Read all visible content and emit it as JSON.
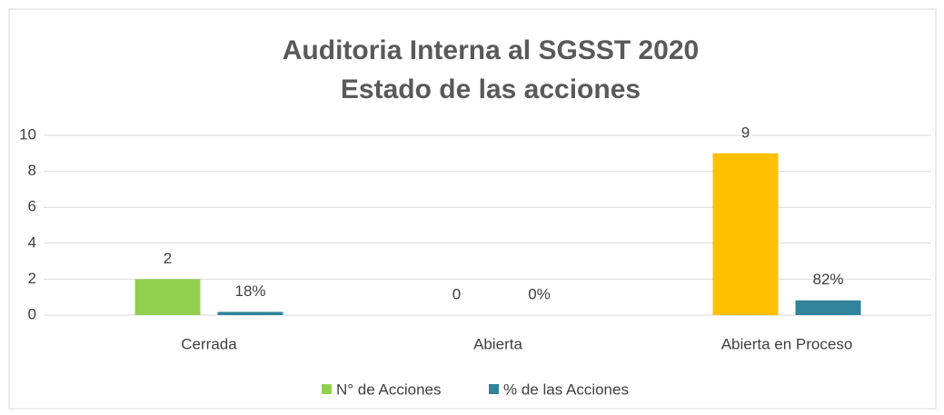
{
  "chart_data": {
    "type": "bar",
    "title": [
      "Auditoria Interna al SGSST 2020",
      "Estado de las acciones"
    ],
    "categories": [
      "Cerrada",
      "Abierta",
      "Abierta en Proceso"
    ],
    "series": [
      {
        "name": "N° de Acciones",
        "color": "#92d050",
        "colors": [
          "#92d050",
          "#92d050",
          "#ffc000"
        ],
        "values": [
          2,
          0,
          9
        ]
      },
      {
        "name": "% de las Acciones",
        "color": "#31849b",
        "values": [
          0.18,
          0,
          0.82
        ],
        "value_labels": [
          "18%",
          "0%",
          "82%"
        ]
      }
    ],
    "ylim": [
      0,
      10
    ],
    "yticks": [
      0,
      2,
      4,
      6,
      8,
      10
    ],
    "grid": true,
    "legend": "bottom"
  }
}
